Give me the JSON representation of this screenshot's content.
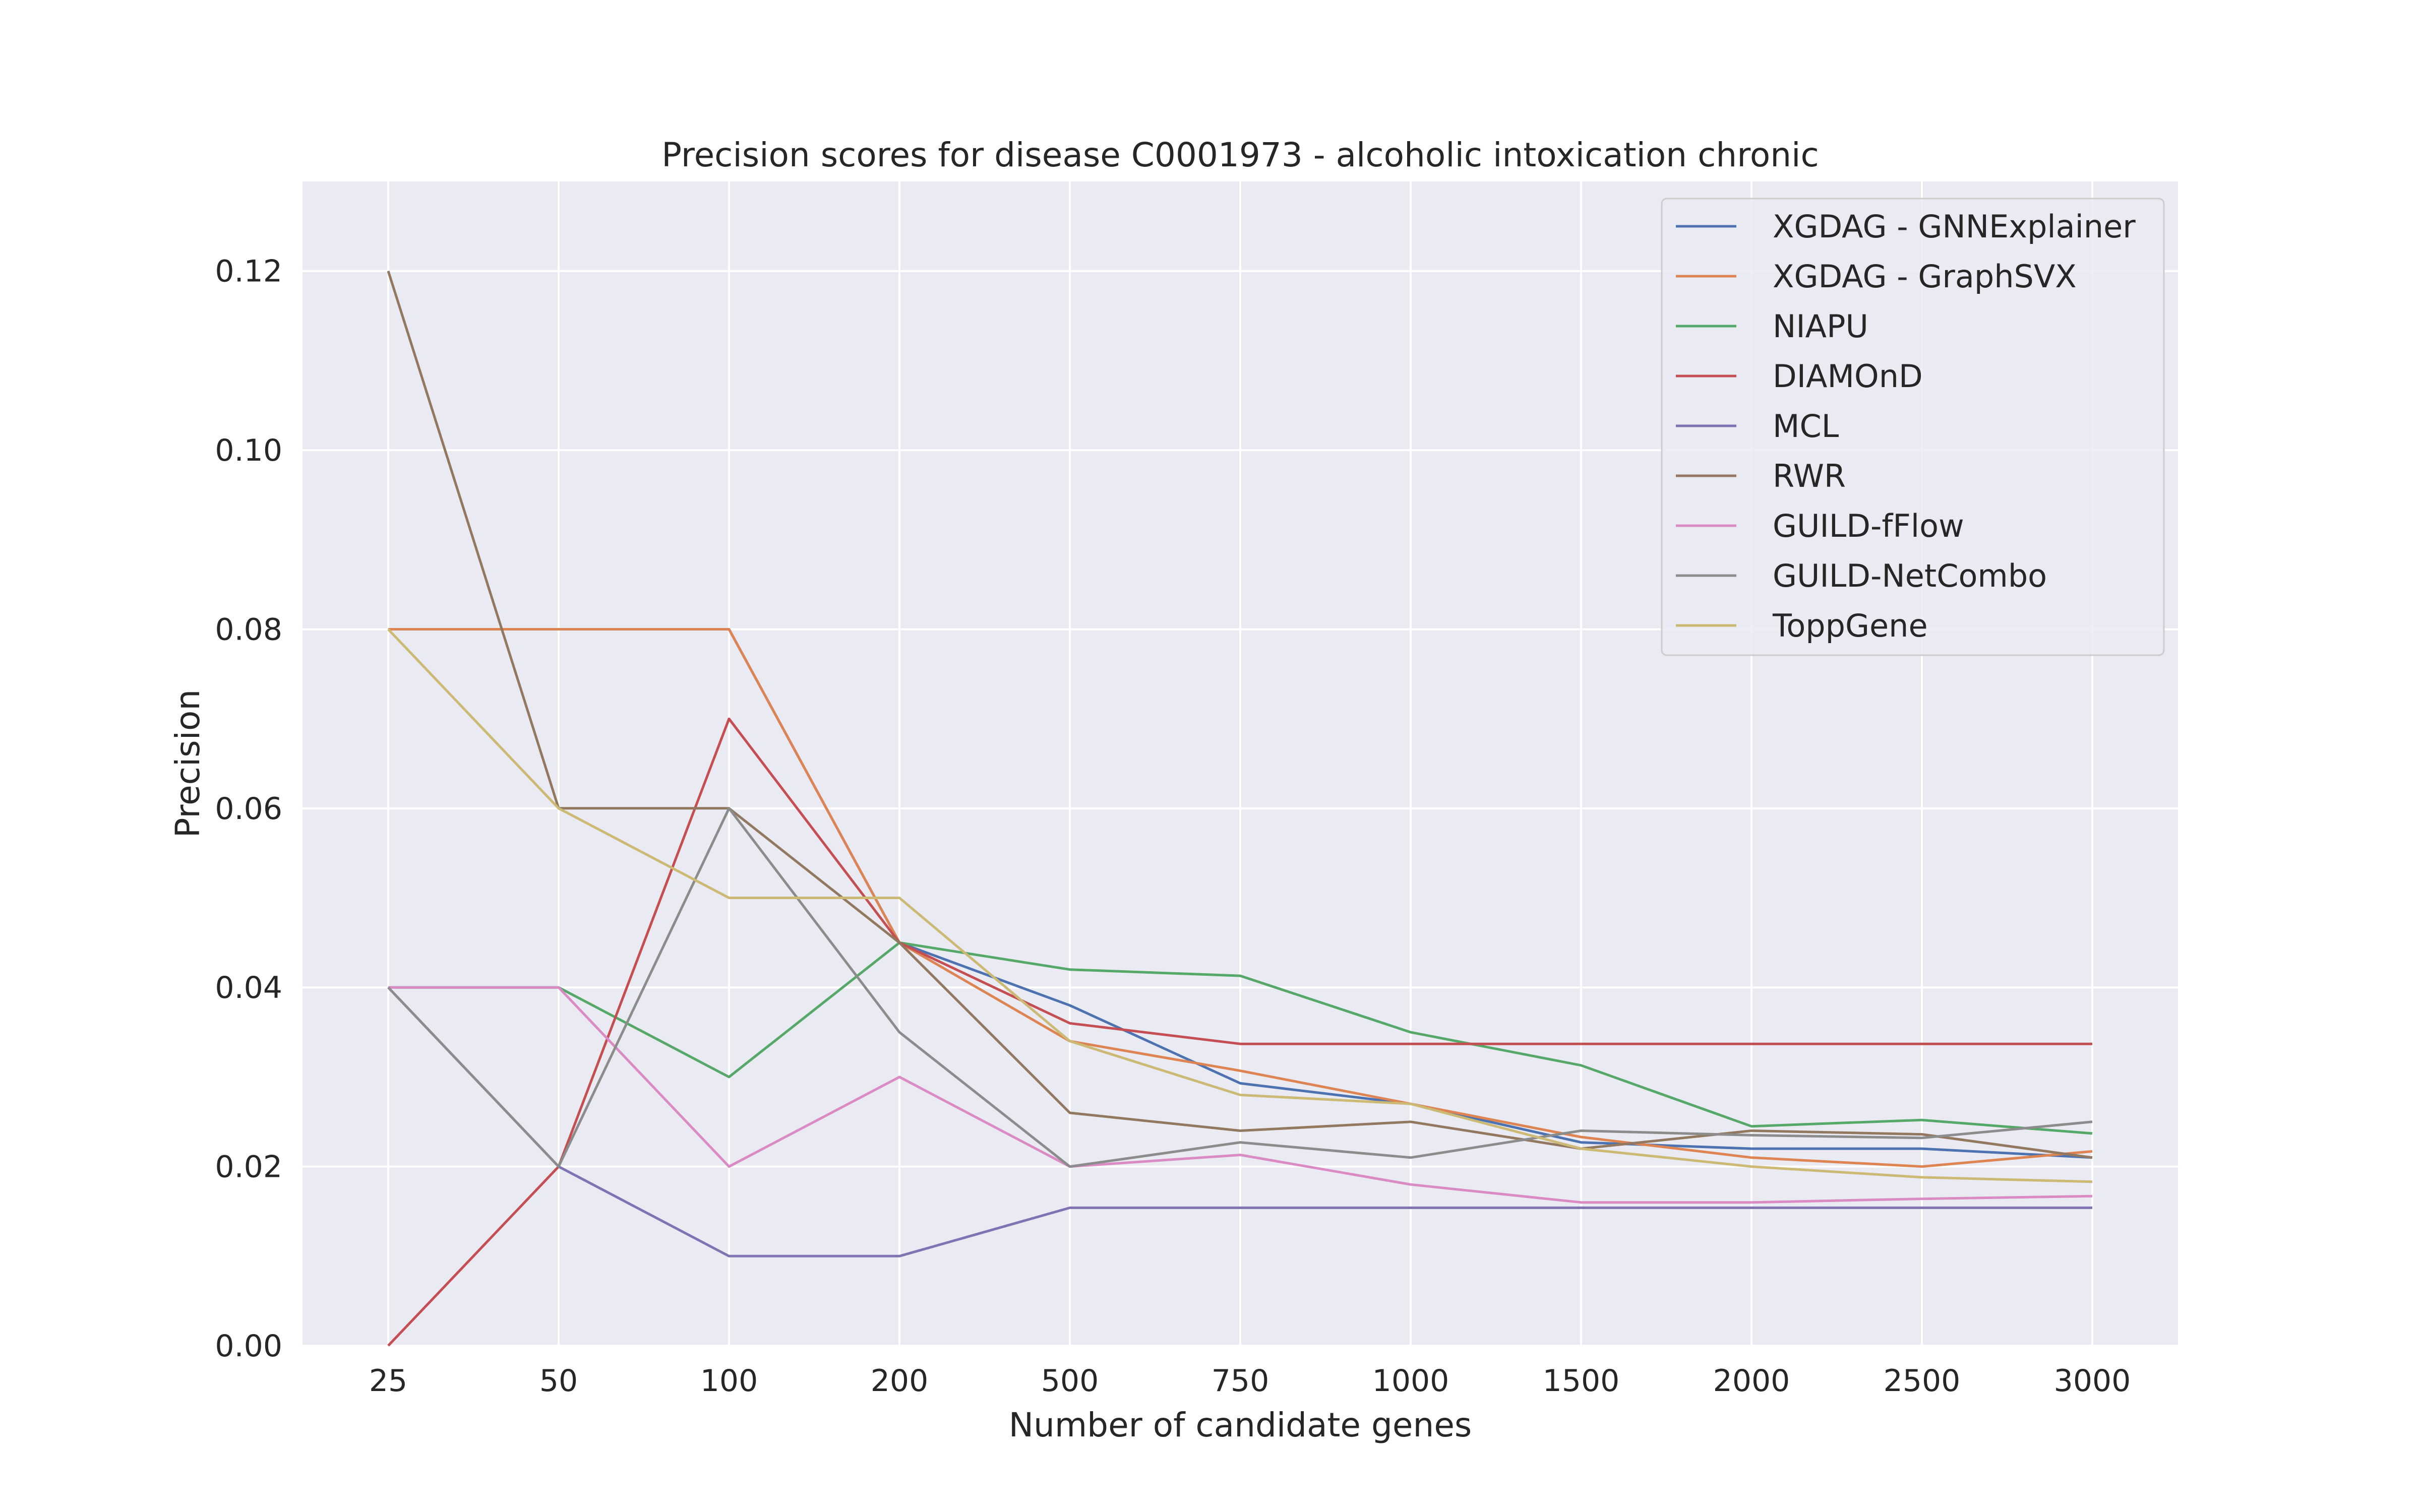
{
  "chart_data": {
    "type": "line",
    "title": "Precision scores for disease C0001973 - alcoholic intoxication chronic",
    "xlabel": "Number of candidate genes",
    "ylabel": "Precision",
    "categories": [
      "25",
      "50",
      "100",
      "200",
      "500",
      "750",
      "1000",
      "1500",
      "2000",
      "2500",
      "3000"
    ],
    "ylim": [
      0,
      0.13
    ],
    "yticks": [
      "0.00",
      "0.02",
      "0.04",
      "0.06",
      "0.08",
      "0.10",
      "0.12"
    ],
    "grid": true,
    "legend_position": "top-right",
    "background_color": "#eaeaf2",
    "series": [
      {
        "name": "XGDAG - GNNExplainer",
        "color": "#4c72b0",
        "values": [
          0.08,
          0.08,
          0.08,
          0.045,
          0.038,
          0.0293,
          0.027,
          0.0227,
          0.022,
          0.022,
          0.021
        ]
      },
      {
        "name": "XGDAG - GraphSVX",
        "color": "#dd8452",
        "values": [
          0.08,
          0.08,
          0.08,
          0.045,
          0.034,
          0.0307,
          0.027,
          0.0233,
          0.021,
          0.02,
          0.0217
        ]
      },
      {
        "name": "NIAPU",
        "color": "#55a868",
        "values": [
          0.04,
          0.04,
          0.03,
          0.045,
          0.042,
          0.0413,
          0.035,
          0.0313,
          0.0245,
          0.0252,
          0.0237
        ]
      },
      {
        "name": "DIAMOnD",
        "color": "#c44e52",
        "values": [
          0.0,
          0.02,
          0.07,
          0.045,
          0.036,
          0.0337,
          0.0337,
          0.0337,
          0.0337,
          0.0337,
          0.0337
        ]
      },
      {
        "name": "MCL",
        "color": "#8172b3",
        "values": [
          0.04,
          0.02,
          0.01,
          0.01,
          0.0154,
          0.0154,
          0.0154,
          0.0154,
          0.0154,
          0.0154,
          0.0154
        ]
      },
      {
        "name": "RWR",
        "color": "#937860",
        "values": [
          0.12,
          0.06,
          0.06,
          0.045,
          0.026,
          0.024,
          0.025,
          0.022,
          0.024,
          0.0236,
          0.021
        ]
      },
      {
        "name": "GUILD-fFlow",
        "color": "#da8bc3",
        "values": [
          0.04,
          0.04,
          0.02,
          0.03,
          0.02,
          0.0213,
          0.018,
          0.016,
          0.016,
          0.0164,
          0.0167
        ]
      },
      {
        "name": "GUILD-NetCombo",
        "color": "#8c8c8c",
        "values": [
          0.04,
          0.02,
          0.06,
          0.035,
          0.02,
          0.0227,
          0.021,
          0.024,
          0.0235,
          0.0232,
          0.025
        ]
      },
      {
        "name": "ToppGene",
        "color": "#ccb974",
        "values": [
          0.08,
          0.06,
          0.05,
          0.05,
          0.034,
          0.028,
          0.027,
          0.022,
          0.02,
          0.0188,
          0.0183
        ]
      }
    ]
  }
}
